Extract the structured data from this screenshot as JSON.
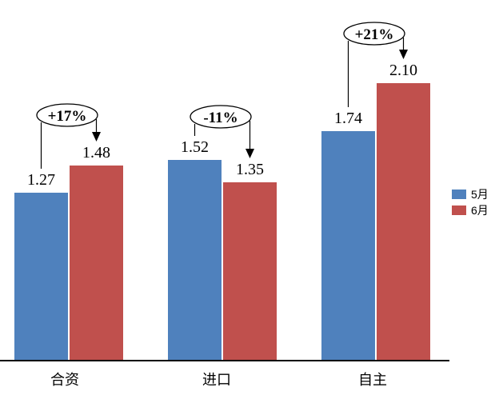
{
  "chart_data": {
    "type": "bar",
    "title": "",
    "xlabel": "",
    "ylabel": "",
    "grid": false,
    "y_axis_visible": false,
    "legend_position": "right",
    "categories": [
      "合资",
      "进口",
      "自主"
    ],
    "series": [
      {
        "name": "5月",
        "color": "#4F81BD",
        "values": [
          1.27,
          1.52,
          1.74
        ],
        "labels": [
          "1.27",
          "1.52",
          "1.74"
        ]
      },
      {
        "name": "6月",
        "color": "#C0504D",
        "values": [
          1.48,
          1.35,
          2.1
        ],
        "labels": [
          "1.48",
          "1.35",
          "2.10"
        ]
      }
    ],
    "annotations": [
      {
        "category": "合资",
        "label": "+17%"
      },
      {
        "category": "进口",
        "label": "-11%"
      },
      {
        "category": "自主",
        "label": "+21%"
      }
    ]
  },
  "colors": {
    "series_blue": "#4F81BD",
    "series_red": "#C0504D",
    "axis_line": "#000000",
    "text": "#000000",
    "background": "#FFFFFF"
  }
}
